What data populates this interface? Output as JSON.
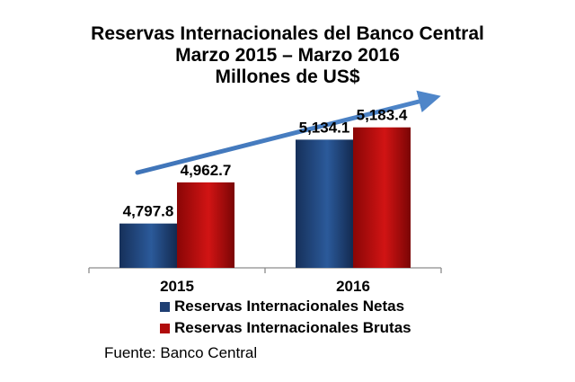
{
  "chart_data": {
    "type": "bar",
    "title": [
      "Reservas Internacionales del Banco Central",
      "Marzo 2015 – Marzo 2016",
      "Millones de US$"
    ],
    "categories": [
      "2015",
      "2016"
    ],
    "series": [
      {
        "name": "Reservas Internacionales Netas",
        "values": [
          4797.8,
          5134.1
        ],
        "labels": [
          "4,797.8",
          "5,134.1"
        ],
        "color": "#1f3f73"
      },
      {
        "name": "Reservas Internacionales Brutas",
        "values": [
          4962.7,
          5183.4
        ],
        "labels": [
          "4,962.7",
          "5,183.4"
        ],
        "color": "#b00c0c"
      }
    ],
    "ylim": [
      4620,
      5240
    ],
    "grid": false,
    "legend_position": "bottom",
    "trend_arrow": "up",
    "source": "Fuente: Banco Central"
  }
}
